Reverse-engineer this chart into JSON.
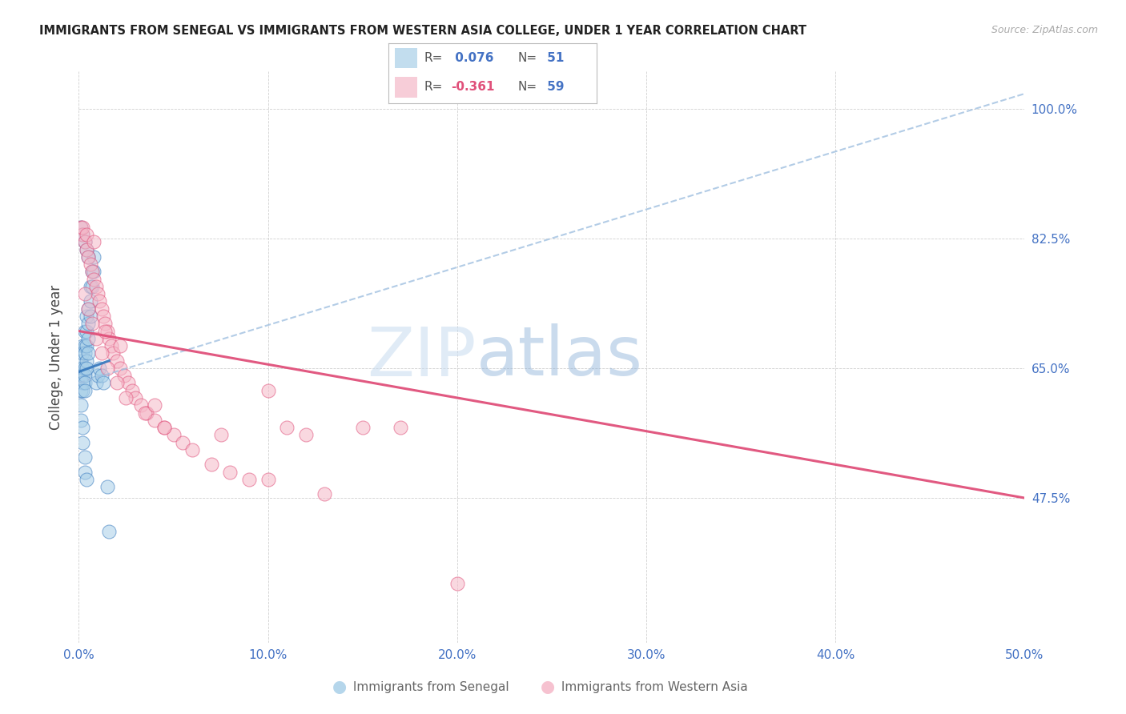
{
  "title": "IMMIGRANTS FROM SENEGAL VS IMMIGRANTS FROM WESTERN ASIA COLLEGE, UNDER 1 YEAR CORRELATION CHART",
  "source": "Source: ZipAtlas.com",
  "ylabel": "College, Under 1 year",
  "xlabel_senegal": "Immigrants from Senegal",
  "xlabel_western_asia": "Immigrants from Western Asia",
  "xmin": 0.0,
  "xmax": 0.5,
  "ymin": 0.28,
  "ymax": 1.05,
  "yticks": [
    0.475,
    0.65,
    0.825,
    1.0
  ],
  "ytick_labels": [
    "47.5%",
    "65.0%",
    "82.5%",
    "100.0%"
  ],
  "xticks": [
    0.0,
    0.1,
    0.2,
    0.3,
    0.4,
    0.5
  ],
  "xtick_labels": [
    "0.0%",
    "10.0%",
    "20.0%",
    "30.0%",
    "40.0%",
    "50.0%"
  ],
  "senegal_color": "#a8cfe8",
  "western_asia_color": "#f5b8c8",
  "trend_senegal_color": "#3a7bbf",
  "trend_western_color": "#e0507a",
  "dashed_line_color": "#a0c0e0",
  "watermark_color": "#d0e4f5",
  "senegal_x": [
    0.001,
    0.001,
    0.001,
    0.002,
    0.002,
    0.002,
    0.002,
    0.002,
    0.002,
    0.003,
    0.003,
    0.003,
    0.003,
    0.003,
    0.003,
    0.003,
    0.004,
    0.004,
    0.004,
    0.004,
    0.004,
    0.005,
    0.005,
    0.005,
    0.005,
    0.006,
    0.006,
    0.006,
    0.007,
    0.007,
    0.008,
    0.008,
    0.009,
    0.01,
    0.011,
    0.012,
    0.013,
    0.015,
    0.016,
    0.001,
    0.001,
    0.002,
    0.002,
    0.003,
    0.003,
    0.004,
    0.001,
    0.002,
    0.003,
    0.004,
    0.005
  ],
  "senegal_y": [
    0.66,
    0.64,
    0.62,
    0.68,
    0.67,
    0.65,
    0.64,
    0.63,
    0.62,
    0.7,
    0.68,
    0.67,
    0.65,
    0.64,
    0.63,
    0.62,
    0.72,
    0.7,
    0.68,
    0.66,
    0.65,
    0.73,
    0.71,
    0.69,
    0.67,
    0.76,
    0.74,
    0.72,
    0.78,
    0.76,
    0.8,
    0.78,
    0.63,
    0.64,
    0.65,
    0.64,
    0.63,
    0.49,
    0.43,
    0.6,
    0.58,
    0.57,
    0.55,
    0.53,
    0.51,
    0.5,
    0.84,
    0.83,
    0.82,
    0.81,
    0.8
  ],
  "western_x": [
    0.001,
    0.002,
    0.003,
    0.004,
    0.005,
    0.006,
    0.007,
    0.008,
    0.009,
    0.01,
    0.011,
    0.012,
    0.013,
    0.014,
    0.015,
    0.016,
    0.017,
    0.018,
    0.02,
    0.022,
    0.024,
    0.026,
    0.028,
    0.03,
    0.033,
    0.036,
    0.04,
    0.045,
    0.05,
    0.055,
    0.06,
    0.07,
    0.08,
    0.09,
    0.1,
    0.11,
    0.12,
    0.13,
    0.15,
    0.17,
    0.003,
    0.005,
    0.007,
    0.009,
    0.012,
    0.015,
    0.02,
    0.025,
    0.035,
    0.045,
    0.002,
    0.004,
    0.008,
    0.014,
    0.022,
    0.04,
    0.075,
    0.1,
    0.2
  ],
  "western_y": [
    0.84,
    0.83,
    0.82,
    0.81,
    0.8,
    0.79,
    0.78,
    0.77,
    0.76,
    0.75,
    0.74,
    0.73,
    0.72,
    0.71,
    0.7,
    0.69,
    0.68,
    0.67,
    0.66,
    0.65,
    0.64,
    0.63,
    0.62,
    0.61,
    0.6,
    0.59,
    0.58,
    0.57,
    0.56,
    0.55,
    0.54,
    0.52,
    0.51,
    0.5,
    0.62,
    0.57,
    0.56,
    0.48,
    0.57,
    0.57,
    0.75,
    0.73,
    0.71,
    0.69,
    0.67,
    0.65,
    0.63,
    0.61,
    0.59,
    0.57,
    0.84,
    0.83,
    0.82,
    0.7,
    0.68,
    0.6,
    0.56,
    0.5,
    0.36
  ]
}
